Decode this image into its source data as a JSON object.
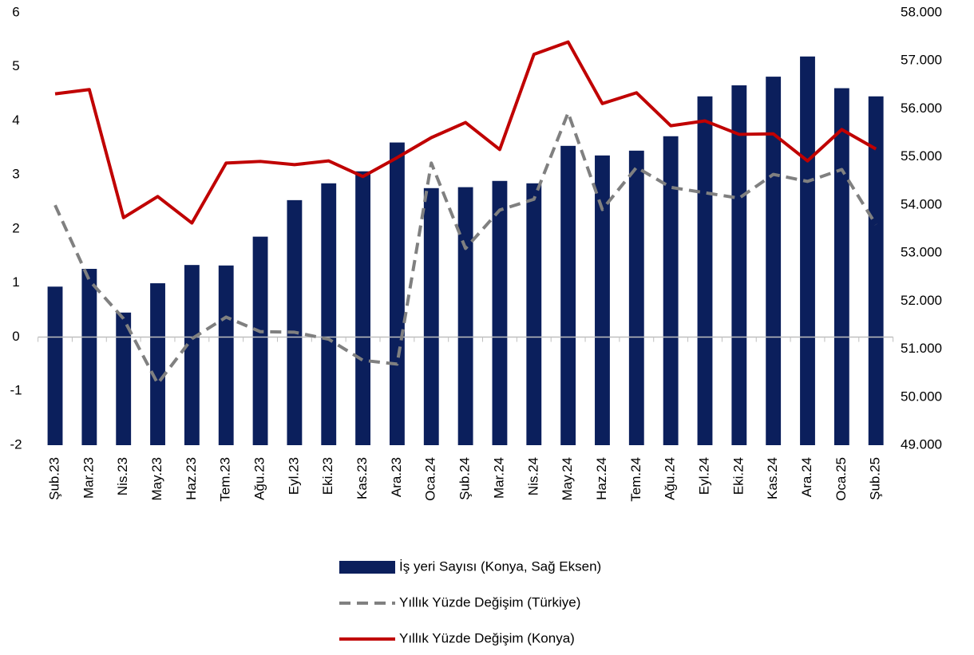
{
  "chart_data": {
    "type": "bar",
    "categories": [
      "Şub.23",
      "Mar.23",
      "Nis.23",
      "May.23",
      "Haz.23",
      "Tem.23",
      "Ağu.23",
      "Eyl.23",
      "Eki.23",
      "Kas.23",
      "Ara.23",
      "Oca.24",
      "Şub.24",
      "Mar.24",
      "Nis.24",
      "May.24",
      "Haz.24",
      "Tem.24",
      "Ağu.24",
      "Eyl.24",
      "Eki.24",
      "Kas.24",
      "Ara.24",
      "Oca.25",
      "Şub.25"
    ],
    "series": [
      {
        "name": "İş yeri Sayısı (Konya, Sağ Eksen)",
        "type": "bar",
        "axis": "y2",
        "color": "#0b1f5c",
        "values": [
          52300,
          52670,
          51760,
          52370,
          52750,
          52740,
          53340,
          54100,
          54450,
          54700,
          55300,
          54350,
          54370,
          54500,
          54450,
          55230,
          55030,
          55130,
          55430,
          56260,
          56490,
          56670,
          57090,
          56430,
          56260
        ]
      },
      {
        "name": "Yıllık Yüzde Değişim (Türkiye)",
        "type": "line",
        "dashed": true,
        "color": "#808080",
        "values": [
          2.44,
          1.05,
          0.34,
          -0.86,
          -0.03,
          0.37,
          0.1,
          0.09,
          -0.04,
          -0.43,
          -0.5,
          3.22,
          1.64,
          2.35,
          2.55,
          4.15,
          2.36,
          3.14,
          2.77,
          2.67,
          2.57,
          3.01,
          2.88,
          3.1,
          2.08
        ]
      },
      {
        "name": "Yıllık Yüzde Değişim (Konya)",
        "type": "line",
        "color": "#c00000",
        "values": [
          4.5,
          4.58,
          2.21,
          2.6,
          2.11,
          3.22,
          3.25,
          3.19,
          3.26,
          2.97,
          3.32,
          3.69,
          3.97,
          3.47,
          5.23,
          5.46,
          4.32,
          4.52,
          3.91,
          4.0,
          3.75,
          3.76,
          3.26,
          3.84,
          3.48
        ]
      }
    ],
    "ylim": [
      -2,
      6
    ],
    "yticks": [
      -2,
      -1,
      0,
      1,
      2,
      3,
      4,
      5,
      6
    ],
    "y2lim": [
      49000,
      58000
    ],
    "y2ticks": [
      {
        "value": 49000,
        "label": "49.000"
      },
      {
        "value": 50000,
        "label": "50.000"
      },
      {
        "value": 51000,
        "label": "51.000"
      },
      {
        "value": 52000,
        "label": "52.000"
      },
      {
        "value": 53000,
        "label": "53.000"
      },
      {
        "value": 54000,
        "label": "54.000"
      },
      {
        "value": 55000,
        "label": "55.000"
      },
      {
        "value": 56000,
        "label": "56.000"
      },
      {
        "value": 57000,
        "label": "57.000"
      },
      {
        "value": 58000,
        "label": "58.000"
      }
    ],
    "legend": "bottom"
  }
}
